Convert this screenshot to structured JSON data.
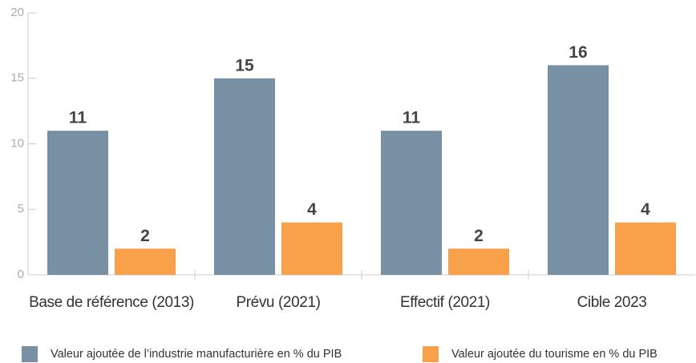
{
  "chart_data": {
    "type": "bar",
    "categories": [
      "Base de référence (2013)",
      "Prévu (2021)",
      "Effectif (2021)",
      "Cible 2023"
    ],
    "series": [
      {
        "name": "Valeur ajoutée de l’industrie manufacturière en % du PIB",
        "color": "#7890a4",
        "values": [
          11,
          15,
          11,
          16
        ]
      },
      {
        "name": "Valeur ajoutée du tourisme en % du PIB",
        "color": "#f9a04a",
        "values": [
          2,
          4,
          2,
          4
        ]
      }
    ],
    "ylim": [
      0,
      20
    ],
    "yticks": [
      0,
      5,
      10,
      15,
      20
    ],
    "grid": false,
    "legend": "bottom"
  }
}
